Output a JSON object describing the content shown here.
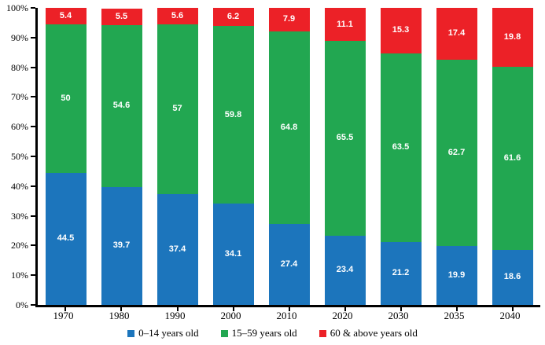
{
  "chart_data": {
    "type": "bar",
    "subtype": "stacked-100-percent",
    "title": "",
    "xlabel": "",
    "ylabel": "",
    "ylim": [
      0,
      100
    ],
    "grid": false,
    "legend_position": "bottom",
    "categories": [
      "1970",
      "1980",
      "1990",
      "2000",
      "2010",
      "2020",
      "2030",
      "2035",
      "2040"
    ],
    "series": [
      {
        "name": "0–14 years old",
        "color": "#1C75BC",
        "values": [
          44.5,
          39.7,
          37.4,
          34.1,
          27.4,
          23.4,
          21.2,
          19.9,
          18.6
        ]
      },
      {
        "name": "15–59 years old",
        "color": "#22A751",
        "values": [
          50,
          54.6,
          57,
          59.8,
          64.8,
          65.5,
          63.5,
          62.7,
          61.6
        ]
      },
      {
        "name": "60 & above years old",
        "color": "#EC2127",
        "values": [
          5.4,
          5.5,
          5.6,
          6.2,
          7.9,
          11.1,
          15.3,
          17.4,
          19.8
        ]
      }
    ],
    "y_ticks": [
      "0%",
      "10%",
      "20%",
      "30%",
      "40%",
      "50%",
      "60%",
      "70%",
      "80%",
      "90%",
      "100%"
    ],
    "value_label_color": "#ffffff",
    "axis_color": "#000000"
  }
}
